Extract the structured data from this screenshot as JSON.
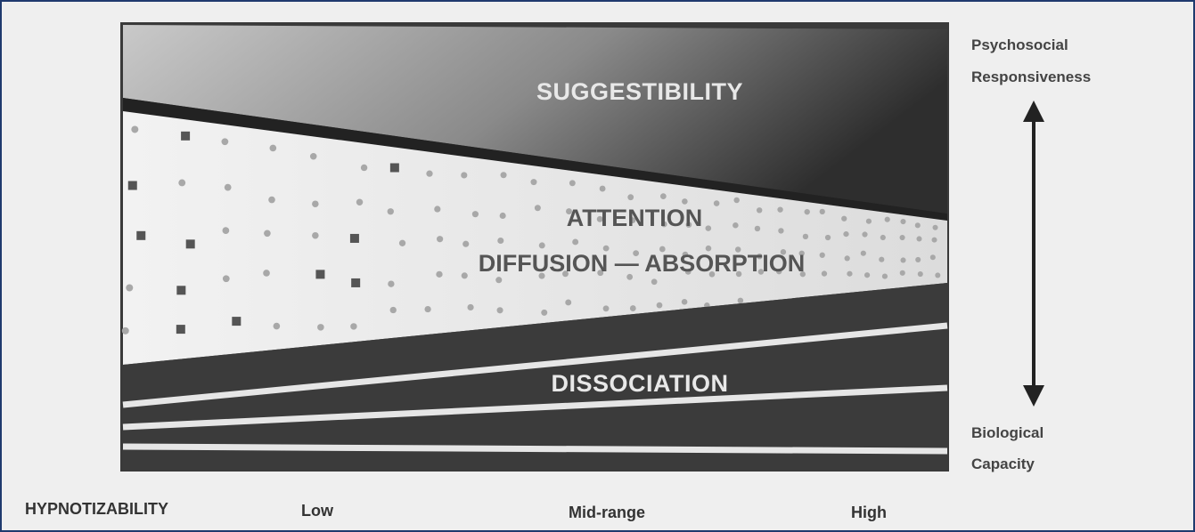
{
  "regions": {
    "top": "SUGGESTIBILITY",
    "middle": [
      "ATTENTION",
      "DIFFUSION — ABSORPTION"
    ],
    "bottom": "DISSOCIATION"
  },
  "axis": {
    "top": [
      "Psychosocial",
      "Responsiveness"
    ],
    "bottom": [
      "Biological",
      "Capacity"
    ]
  },
  "scale": {
    "title": "HYPNOTIZABILITY",
    "levels": [
      "Low",
      "Mid-range",
      "High"
    ]
  }
}
